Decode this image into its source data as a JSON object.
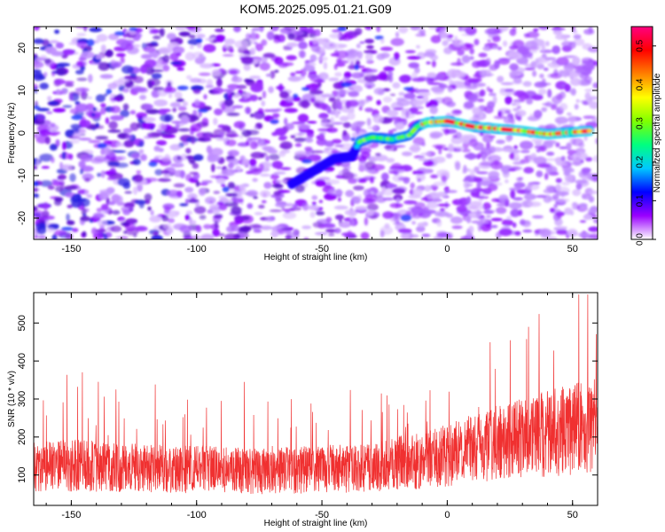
{
  "title": "KOM5.2025.095.01.21.G09",
  "chart_data": [
    {
      "type": "heatmap",
      "xlabel": "Height of straight line (km)",
      "ylabel": "Frequency (Hz)",
      "xlim": [
        -165,
        60
      ],
      "ylim": [
        -25,
        25
      ],
      "xticks": [
        -150,
        -100,
        -50,
        0,
        50
      ],
      "yticks": [
        -20,
        -10,
        0,
        10,
        20
      ],
      "colorbar": {
        "label": "Normalized spectral amplitude",
        "range": [
          0,
          0.55
        ],
        "ticks": [
          0.0,
          0.1,
          0.2,
          0.3,
          0.4,
          0.5
        ],
        "colors": [
          "#ffffff",
          "#9a00ff",
          "#0000ff",
          "#00c8ff",
          "#00ff80",
          "#80ff00",
          "#ffff00",
          "#ff8000",
          "#ff0000",
          "#ff0080"
        ]
      },
      "ridge": [
        {
          "x": -62,
          "y": -12
        },
        {
          "x": -45,
          "y": -6
        },
        {
          "x": -38,
          "y": -5.5
        },
        {
          "x": -35,
          "y": -2
        },
        {
          "x": -30,
          "y": -1
        },
        {
          "x": -22,
          "y": -1.5
        },
        {
          "x": -15,
          "y": -0.5
        },
        {
          "x": -12,
          "y": 1.5
        },
        {
          "x": -8,
          "y": 2.5
        },
        {
          "x": 0,
          "y": 2.8
        },
        {
          "x": 5,
          "y": 2.2
        },
        {
          "x": 10,
          "y": 1.5
        },
        {
          "x": 20,
          "y": 1.0
        },
        {
          "x": 30,
          "y": 0.5
        },
        {
          "x": 40,
          "y": -0.3
        },
        {
          "x": 50,
          "y": 0.2
        },
        {
          "x": 57,
          "y": 0.5
        }
      ]
    },
    {
      "type": "line",
      "xlabel": "Height of straight line (km)",
      "ylabel": "SNR (10 * v/v)",
      "xlim": [
        -165,
        60
      ],
      "ylim": [
        20,
        580
      ],
      "xticks": [
        -150,
        -100,
        -50,
        0,
        50
      ],
      "yticks": [
        100,
        200,
        300,
        400,
        500
      ],
      "series_color": "#f03030",
      "envelope": {
        "x": [
          -165,
          -150,
          -125,
          -100,
          -75,
          -50,
          -25,
          0,
          25,
          50,
          60
        ],
        "y": [
          120,
          125,
          120,
          115,
          110,
          115,
          125,
          150,
          195,
          220,
          230
        ]
      }
    }
  ]
}
